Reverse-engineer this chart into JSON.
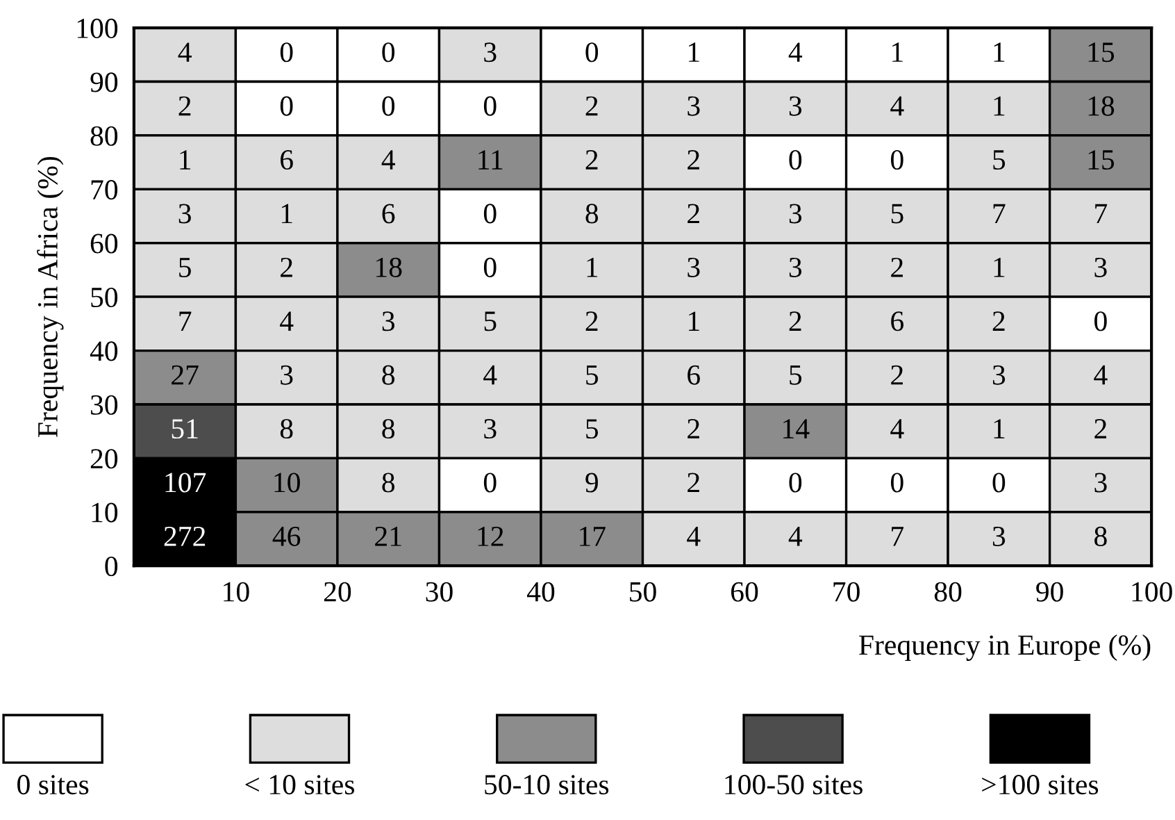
{
  "chart_data": {
    "type": "heatmap",
    "xlabel": "Frequency in Europe (%)",
    "ylabel": "Frequency in Africa (%)",
    "x": [
      5,
      15,
      25,
      35,
      45,
      55,
      65,
      75,
      85,
      95
    ],
    "xlim": [
      0,
      100
    ],
    "xticks": [
      10,
      20,
      30,
      40,
      50,
      60,
      70,
      80,
      90,
      100
    ],
    "ylim": [
      0,
      100
    ],
    "yticks": [
      0,
      10,
      20,
      30,
      40,
      50,
      60,
      70,
      80,
      90,
      100
    ],
    "cells": [
      [
        4,
        0,
        0,
        3,
        0,
        1,
        4,
        1,
        1,
        15
      ],
      [
        2,
        0,
        0,
        0,
        2,
        3,
        3,
        4,
        1,
        18
      ],
      [
        1,
        6,
        4,
        11,
        2,
        2,
        0,
        0,
        5,
        15
      ],
      [
        3,
        1,
        6,
        0,
        8,
        2,
        3,
        5,
        7,
        7
      ],
      [
        5,
        2,
        18,
        0,
        1,
        3,
        3,
        2,
        1,
        3
      ],
      [
        7,
        4,
        3,
        5,
        2,
        1,
        2,
        6,
        2,
        0
      ],
      [
        27,
        3,
        8,
        4,
        5,
        6,
        5,
        2,
        3,
        4
      ],
      [
        51,
        8,
        8,
        3,
        5,
        2,
        14,
        4,
        1,
        2
      ],
      [
        107,
        10,
        8,
        0,
        9,
        2,
        0,
        0,
        0,
        3
      ],
      [
        272,
        46,
        21,
        12,
        17,
        4,
        4,
        7,
        3,
        8
      ]
    ],
    "colors": [
      [
        "#dddddd",
        "#ffffff",
        "#ffffff",
        "#dddddd",
        "#ffffff",
        "#ffffff",
        "#ffffff",
        "#ffffff",
        "#ffffff",
        "#8c8c8c"
      ],
      [
        "#dddddd",
        "#ffffff",
        "#ffffff",
        "#ffffff",
        "#dddddd",
        "#dddddd",
        "#dddddd",
        "#dddddd",
        "#dddddd",
        "#8c8c8c"
      ],
      [
        "#dddddd",
        "#dddddd",
        "#dddddd",
        "#8c8c8c",
        "#dddddd",
        "#dddddd",
        "#ffffff",
        "#ffffff",
        "#dddddd",
        "#8c8c8c"
      ],
      [
        "#dddddd",
        "#dddddd",
        "#dddddd",
        "#ffffff",
        "#dddddd",
        "#dddddd",
        "#dddddd",
        "#dddddd",
        "#dddddd",
        "#dddddd"
      ],
      [
        "#dddddd",
        "#dddddd",
        "#8c8c8c",
        "#ffffff",
        "#dddddd",
        "#dddddd",
        "#dddddd",
        "#dddddd",
        "#dddddd",
        "#dddddd"
      ],
      [
        "#dddddd",
        "#dddddd",
        "#dddddd",
        "#dddddd",
        "#dddddd",
        "#dddddd",
        "#dddddd",
        "#dddddd",
        "#dddddd",
        "#ffffff"
      ],
      [
        "#8c8c8c",
        "#dddddd",
        "#dddddd",
        "#dddddd",
        "#dddddd",
        "#dddddd",
        "#dddddd",
        "#dddddd",
        "#dddddd",
        "#dddddd"
      ],
      [
        "#4d4d4d",
        "#dddddd",
        "#dddddd",
        "#dddddd",
        "#dddddd",
        "#dddddd",
        "#8c8c8c",
        "#dddddd",
        "#dddddd",
        "#dddddd"
      ],
      [
        "#000000",
        "#8c8c8c",
        "#dddddd",
        "#ffffff",
        "#dddddd",
        "#dddddd",
        "#ffffff",
        "#ffffff",
        "#ffffff",
        "#dddddd"
      ],
      [
        "#000000",
        "#8c8c8c",
        "#8c8c8c",
        "#8c8c8c",
        "#8c8c8c",
        "#dddddd",
        "#dddddd",
        "#dddddd",
        "#dddddd",
        "#dddddd"
      ]
    ],
    "data_labels": true,
    "annotations": [
      "0 sites",
      "< 10 sites",
      "50-10 sites",
      "100-50 sites",
      ">100 sites"
    ]
  }
}
